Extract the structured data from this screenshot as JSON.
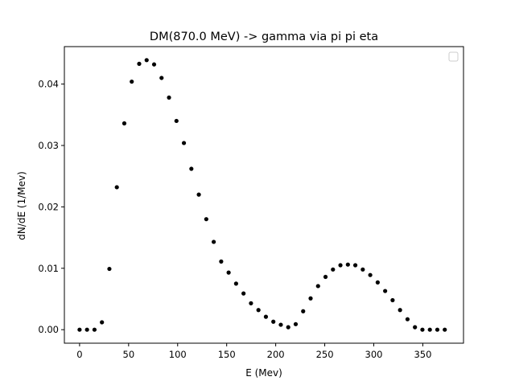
{
  "chart_data": {
    "type": "scatter",
    "title": "DM(870.0 MeV) -> gamma via pi pi eta",
    "xlabel": "E (Mev)",
    "ylabel": "dN/dE (1/Mev)",
    "xlim": [
      -15.5,
      391.5
    ],
    "ylim": [
      -0.0022,
      0.0461
    ],
    "xticks": [
      0,
      50,
      100,
      150,
      200,
      250,
      300,
      350
    ],
    "yticks": [
      0.0,
      0.01,
      0.02,
      0.03,
      0.04
    ],
    "xtick_labels": [
      "0",
      "50",
      "100",
      "150",
      "200",
      "250",
      "300",
      "350"
    ],
    "ytick_labels": [
      "0.00",
      "0.01",
      "0.02",
      "0.03",
      "0.04"
    ],
    "grid": false,
    "legend": "top-right",
    "marker_color": "#000000",
    "series": [
      {
        "x": [
          0,
          7.6,
          15.2,
          22.8,
          30.4,
          38.0,
          45.6,
          53.2,
          60.8,
          68.4,
          76.0,
          83.6,
          91.2,
          98.8,
          106.4,
          114.0,
          121.6,
          129.2,
          136.8,
          144.4,
          152.0,
          159.6,
          167.2,
          174.8,
          182.4,
          190.0,
          197.6,
          205.2,
          212.8,
          220.4,
          228.0,
          235.6,
          243.2,
          250.8,
          258.4,
          266.0,
          273.6,
          281.2,
          288.8,
          296.4,
          304.0,
          311.6,
          319.2,
          326.8,
          334.4,
          342.0,
          349.6,
          357.2,
          364.8,
          372.4
        ],
        "y": [
          0.0,
          0.0,
          0.0,
          0.0012,
          0.0099,
          0.0232,
          0.0336,
          0.0404,
          0.0433,
          0.0439,
          0.0432,
          0.041,
          0.0378,
          0.034,
          0.0304,
          0.0262,
          0.022,
          0.018,
          0.0143,
          0.0111,
          0.0093,
          0.0075,
          0.0059,
          0.0043,
          0.0032,
          0.0021,
          0.0013,
          0.0008,
          0.0004,
          0.0009,
          0.003,
          0.0051,
          0.0071,
          0.0086,
          0.0098,
          0.0105,
          0.0106,
          0.0105,
          0.0098,
          0.0089,
          0.0077,
          0.0063,
          0.0048,
          0.0032,
          0.0017,
          0.0004,
          0.0,
          0.0,
          0.0,
          0.0
        ]
      }
    ]
  }
}
